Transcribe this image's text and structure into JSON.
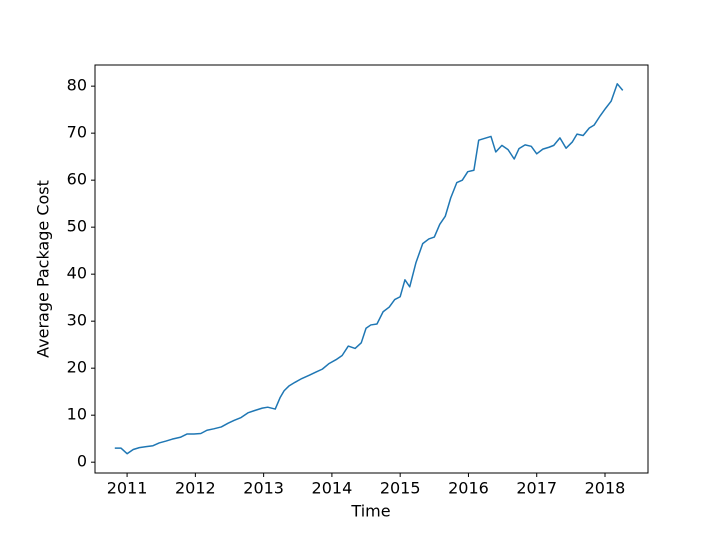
{
  "chart_data": {
    "type": "line",
    "xlabel": "Time",
    "ylabel": "Average Package Cost",
    "x": [
      2010.82,
      2010.91,
      2011.0,
      2011.09,
      2011.18,
      2011.28,
      2011.38,
      2011.47,
      2011.57,
      2011.66,
      2011.78,
      2011.88,
      2011.98,
      2012.08,
      2012.17,
      2012.27,
      2012.38,
      2012.48,
      2012.57,
      2012.67,
      2012.77,
      2012.87,
      2012.98,
      2013.06,
      2013.17,
      2013.24,
      2013.3,
      2013.37,
      2013.46,
      2013.56,
      2013.67,
      2013.77,
      2013.86,
      2013.96,
      2014.06,
      2014.15,
      2014.24,
      2014.34,
      2014.43,
      2014.5,
      2014.57,
      2014.66,
      2014.75,
      2014.84,
      2014.92,
      2015.0,
      2015.07,
      2015.14,
      2015.23,
      2015.33,
      2015.42,
      2015.5,
      2015.58,
      2015.66,
      2015.74,
      2015.83,
      2015.91,
      2015.99,
      2016.08,
      2016.15,
      2016.24,
      2016.33,
      2016.4,
      2016.49,
      2016.58,
      2016.67,
      2016.74,
      2016.83,
      2016.92,
      2017.0,
      2017.09,
      2017.18,
      2017.25,
      2017.34,
      2017.43,
      2017.52,
      2017.59,
      2017.68,
      2017.77,
      2017.84,
      2017.93,
      2018.01,
      2018.09,
      2018.18,
      2018.26
    ],
    "series": [
      {
        "color": "#1f77b4",
        "values": [
          3,
          3,
          1.8,
          2.7,
          3.1,
          3.3,
          3.5,
          4.1,
          4.5,
          4.9,
          5.3,
          6.0,
          6.0,
          6.1,
          6.8,
          7.1,
          7.5,
          8.3,
          8.9,
          9.5,
          10.5,
          11.0,
          11.5,
          11.7,
          11.3,
          13.7,
          15.2,
          16.2,
          17.0,
          17.8,
          18.5,
          19.2,
          19.8,
          21.0,
          21.8,
          22.7,
          24.7,
          24.2,
          25.4,
          28.5,
          29.2,
          29.4,
          32.0,
          33.0,
          34.6,
          35.2,
          38.8,
          37.3,
          42.4,
          46.5,
          47.5,
          47.9,
          50.6,
          52.3,
          56.2,
          59.5,
          60.0,
          61.8,
          62.1,
          68.5,
          68.9,
          69.3,
          66.0,
          67.4,
          66.5,
          64.5,
          66.7,
          67.5,
          67.2,
          65.6,
          66.6,
          67.0,
          67.4,
          69.0,
          66.8,
          68.1,
          69.8,
          69.5,
          71.1,
          71.7,
          73.7,
          75.3,
          76.8,
          80.5,
          79.1
        ]
      }
    ],
    "xlim": [
      2010.53,
      2018.63
    ],
    "xticks": [
      2011,
      2012,
      2013,
      2014,
      2015,
      2016,
      2017,
      2018
    ],
    "ylim": [
      -2.3,
      84.5
    ],
    "yticks": [
      0,
      10,
      20,
      30,
      40,
      50,
      60,
      70,
      80
    ],
    "grid": false
  }
}
